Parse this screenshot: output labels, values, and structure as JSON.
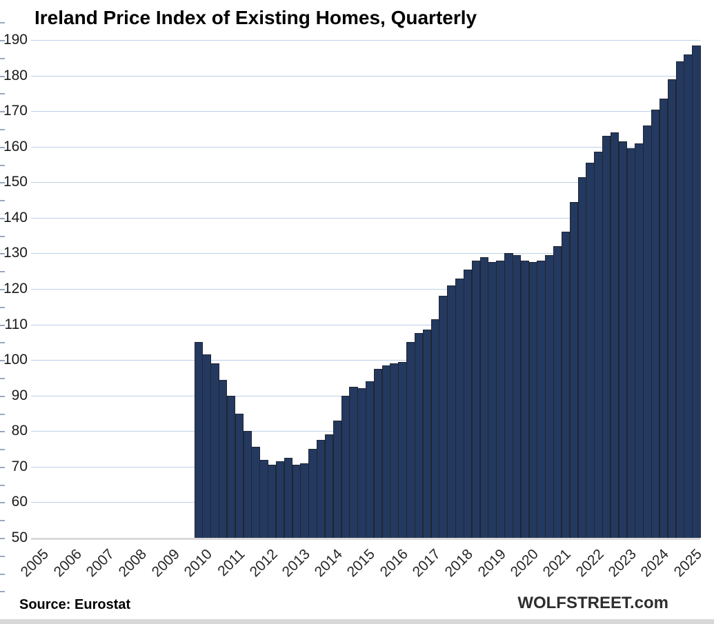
{
  "page": {
    "background": "#ffffff"
  },
  "chart_data": {
    "type": "bar",
    "title": "Ireland Price Index of Existing Homes, Quarterly",
    "source_label": "Source: Eurostat",
    "branding": "WOLFSTREET.com",
    "legend": false,
    "grid": true,
    "y_axis": {
      "min": 50,
      "max": 190,
      "step": 10,
      "tick_labels": [
        "50",
        "60",
        "70",
        "80",
        "90",
        "100",
        "110",
        "120",
        "130",
        "140",
        "150",
        "160",
        "170",
        "180",
        "190"
      ]
    },
    "x_axis": {
      "first_category": "2005-Q1",
      "last_category": "2025-Q2",
      "quarters_per_year": 4,
      "year_labels": [
        "2005",
        "2006",
        "2007",
        "2008",
        "2009",
        "2010",
        "2011",
        "2012",
        "2013",
        "2014",
        "2015",
        "2016",
        "2017",
        "2018",
        "2019",
        "2020",
        "2021",
        "2022",
        "2023",
        "2024",
        "2025"
      ]
    },
    "series": [
      {
        "name": "Existing-home price index, quarterly",
        "start": "2010-Q1",
        "end": "2025-Q2",
        "frequency": "quarterly",
        "values": [
          105,
          101.5,
          99,
          94.5,
          90,
          85,
          80,
          75.5,
          72,
          70.5,
          71.5,
          72.5,
          70.5,
          71,
          75,
          77.5,
          79,
          83,
          90,
          92.5,
          92,
          94,
          97.5,
          98.5,
          99,
          99.5,
          105,
          107.5,
          108.5,
          111.5,
          118,
          121,
          123,
          125.5,
          128,
          129,
          127.5,
          128,
          130,
          129.5,
          128,
          127.5,
          128,
          129.5,
          132,
          136,
          144.5,
          151.5,
          155.5,
          158.5,
          163,
          164,
          161.5,
          159.5,
          161,
          166,
          170.5,
          173.5,
          179,
          184,
          186,
          188.5
        ]
      }
    ],
    "colors": {
      "bar_fill": "#24395f",
      "bar_border": "#1f2633",
      "gridline": "#bcd0e6",
      "axis_line": "#d9d9d9",
      "text": "#1a1a1a"
    }
  }
}
